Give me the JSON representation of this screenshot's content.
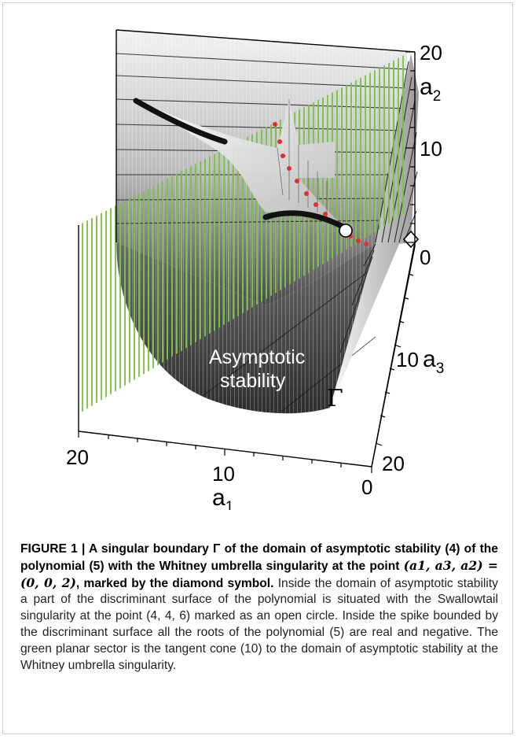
{
  "figure": {
    "axes": {
      "a2": {
        "name": "a",
        "subscript": "2",
        "ticks": [
          "20",
          "10",
          "0"
        ]
      },
      "a3": {
        "name": "a",
        "subscript": "3",
        "ticks": [
          "10",
          "20"
        ]
      },
      "a1": {
        "name": "a",
        "subscript": "1",
        "ticks": [
          "20",
          "10",
          "0"
        ]
      }
    },
    "region_label_line1": "Asymptotic",
    "region_label_line2": "stability",
    "boundary_symbol": "Γ",
    "colors": {
      "tangent_cone": "#7cc24a",
      "surface_dark": "#5a5a5a",
      "surface_light": "#e8e8e8",
      "swallowtail_edge": "#111111",
      "cusp_points": "#e03030"
    }
  },
  "caption": {
    "lead_part1": "FIGURE 1 | A singular boundary ",
    "lead_gamma": "Γ",
    "lead_part2": " of the domain of asymptotic stability (4) of the polynomial (5) with the Whitney umbrella singularity at the point ",
    "lead_point": "(a1, a3, a2) = (0, 0, 2)",
    "lead_part3": ", marked by the diamond symbol.",
    "body": " Inside the domain of asymptotic stability a part of the discriminant surface of the polynomial is situated with the Swallowtail singularity at the point (4, 4, 6) marked as an open circle. Inside the spike bounded by the discriminant surface all the roots of the polynomial (5) are real and negative. The green planar sector is the tangent cone (10) to the domain of asymptotic stability at the Whitney umbrella singularity."
  }
}
